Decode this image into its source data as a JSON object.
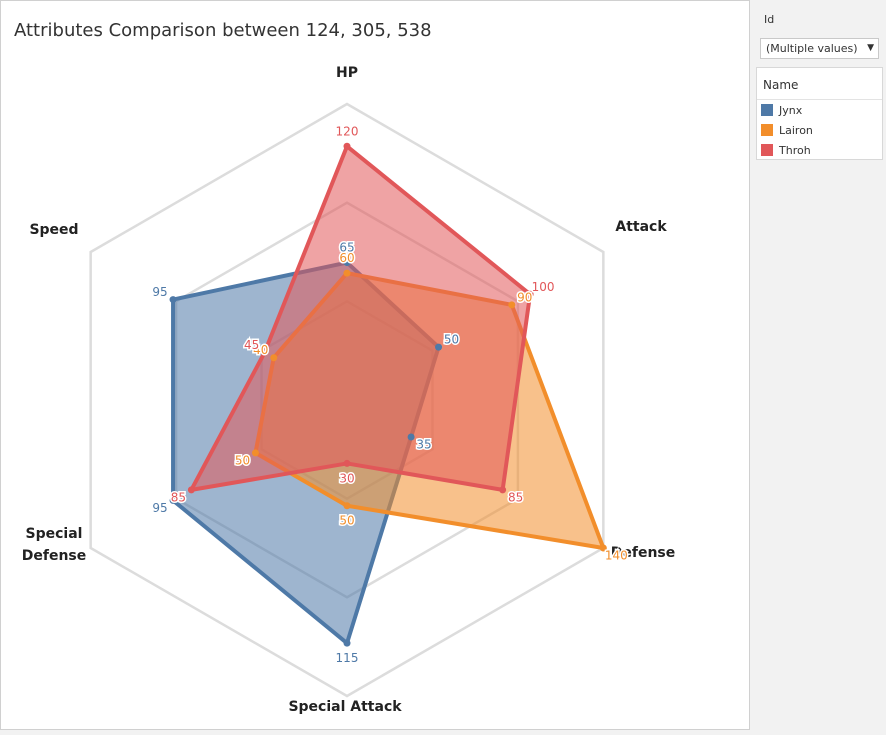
{
  "title": "Attributes Comparison between 124, 305, 538",
  "filter": {
    "label": "Id",
    "value": "(Multiple values)"
  },
  "legend": {
    "title": "Name"
  },
  "chart_data": {
    "type": "radar",
    "title": "Attributes Comparison between 124, 305, 538",
    "axes": [
      "HP",
      "Attack",
      "Defense",
      "Special Attack",
      "Special Defense",
      "Speed"
    ],
    "rmax": 140,
    "grid_rings": 3,
    "series": [
      {
        "name": "Jynx",
        "color": "#4e79a7",
        "values": [
          65,
          50,
          35,
          115,
          95,
          95
        ]
      },
      {
        "name": "Lairon",
        "color": "#f28e2b",
        "values": [
          60,
          90,
          140,
          50,
          50,
          40
        ]
      },
      {
        "name": "Throh",
        "color": "#e15759",
        "values": [
          120,
          100,
          85,
          30,
          85,
          45
        ]
      }
    ]
  }
}
